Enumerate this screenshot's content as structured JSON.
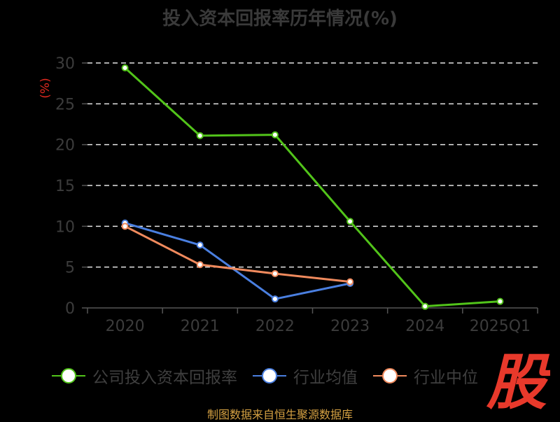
{
  "chart_data": {
    "type": "line",
    "title": "投入资本回报率历年情况(%)",
    "ylabel": "(%)",
    "categories": [
      "2020",
      "2021",
      "2022",
      "2023",
      "2024",
      "2025Q1"
    ],
    "ylim": [
      0,
      30
    ],
    "yticks": [
      "0",
      "5",
      "10",
      "15",
      "20",
      "25",
      "30"
    ],
    "grid": true,
    "legend_position": "bottom",
    "series": [
      {
        "name": "公司投入资本回报率",
        "color": "#52c41a",
        "values": [
          29.4,
          21.1,
          21.2,
          10.6,
          0.2,
          0.8
        ]
      },
      {
        "name": "行业均值",
        "color": "#4a7fe0",
        "values": [
          10.4,
          7.7,
          1.1,
          3.0,
          null,
          null
        ]
      },
      {
        "name": "行业中位",
        "color": "#f08a5d",
        "values": [
          10.0,
          5.3,
          4.2,
          3.2,
          null,
          null
        ]
      }
    ]
  },
  "watermark": {
    "char": "股",
    "color": "#e8392b"
  },
  "source": "制图数据来自恒生聚源数据库"
}
